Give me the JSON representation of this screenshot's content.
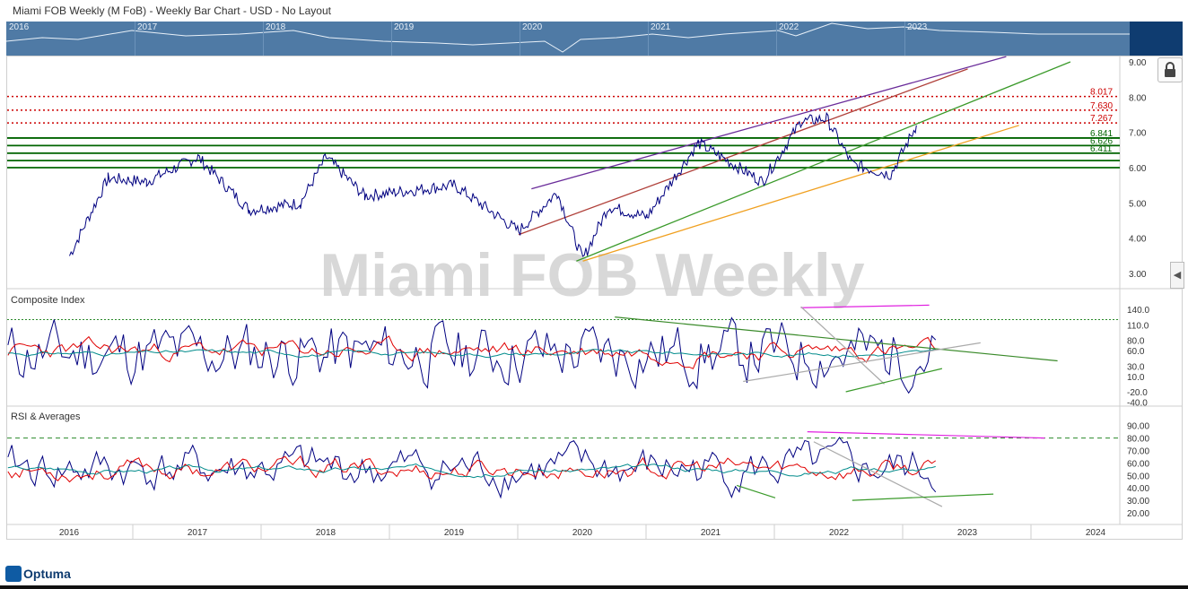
{
  "window": {
    "title": "Miami FOB Weekly (M FoB) - Weekly Bar Chart - USD - No Layout"
  },
  "navigator": {
    "years": [
      "2016",
      "2017",
      "2018",
      "2019",
      "2020",
      "2021",
      "2022",
      "2023"
    ]
  },
  "watermark": "Miami FOB Weekly",
  "branding": {
    "logo_text": "Optuma"
  },
  "colors": {
    "price": "#000080",
    "ma_red": "#e00000",
    "ma_teal": "#008b8b",
    "support": "#006400",
    "resistance": "#cc0000"
  },
  "chart_data": [
    {
      "type": "line",
      "title": "",
      "x_ticks": [
        "2016",
        "2017",
        "2018",
        "2019",
        "2020",
        "2021",
        "2022",
        "2023",
        "2024"
      ],
      "y_ticks": [
        "9.00",
        "8.00",
        "7.00",
        "6.00",
        "5.00",
        "4.00",
        "3.00"
      ],
      "ylim": [
        2.5,
        9.2
      ],
      "series": [
        {
          "values_by_year": {
            "2016.0": 3.5,
            "2016.3": 5.7,
            "2016.6": 5.6,
            "2017.0": 6.3,
            "2017.4": 4.8,
            "2017.8": 5.0,
            "2018.0": 6.3,
            "2018.3": 5.2,
            "2019.0": 5.5,
            "2019.5": 4.2,
            "2019.8": 5.3,
            "2020.0": 3.4,
            "2020.2": 4.9,
            "2020.5": 4.6,
            "2020.9": 6.7,
            "2021.4": 5.6,
            "2021.7": 7.3,
            "2021.9": 7.4,
            "2022.1": 6.1,
            "2022.4": 5.8,
            "2022.6": 7.2
          }
        }
      ],
      "horizontal_levels": [
        {
          "value": 8.017,
          "label": "8.017",
          "style": "dotted",
          "color": "#cc0000"
        },
        {
          "value": 7.63,
          "label": "7.630",
          "style": "dotted",
          "color": "#cc0000"
        },
        {
          "value": 7.267,
          "label": "7.267",
          "style": "dotted",
          "color": "#cc0000"
        },
        {
          "value": 6.841,
          "label": "6.841",
          "style": "solid",
          "color": "#006400"
        },
        {
          "value": 6.626,
          "label": "6.626",
          "style": "solid",
          "color": "#006400"
        },
        {
          "value": 6.411,
          "label": "6.411",
          "style": "solid",
          "color": "#006400"
        },
        {
          "value": 6.2,
          "label": "",
          "style": "solid",
          "color": "#006400"
        },
        {
          "value": 6.0,
          "label": "",
          "style": "solid",
          "color": "#006400"
        }
      ]
    },
    {
      "type": "line",
      "title": "Composite Index",
      "y_ticks": [
        "140.0",
        "110.0",
        "80.0",
        "60.0",
        "30.0",
        "10.0",
        "-20.0",
        "-40.0"
      ],
      "reference_level": 120
    },
    {
      "type": "line",
      "title": "RSI & Averages",
      "y_ticks": [
        "90.00",
        "80.00",
        "70.00",
        "60.00",
        "50.00",
        "40.00",
        "30.00",
        "20.00"
      ],
      "reference_level": 80
    }
  ]
}
